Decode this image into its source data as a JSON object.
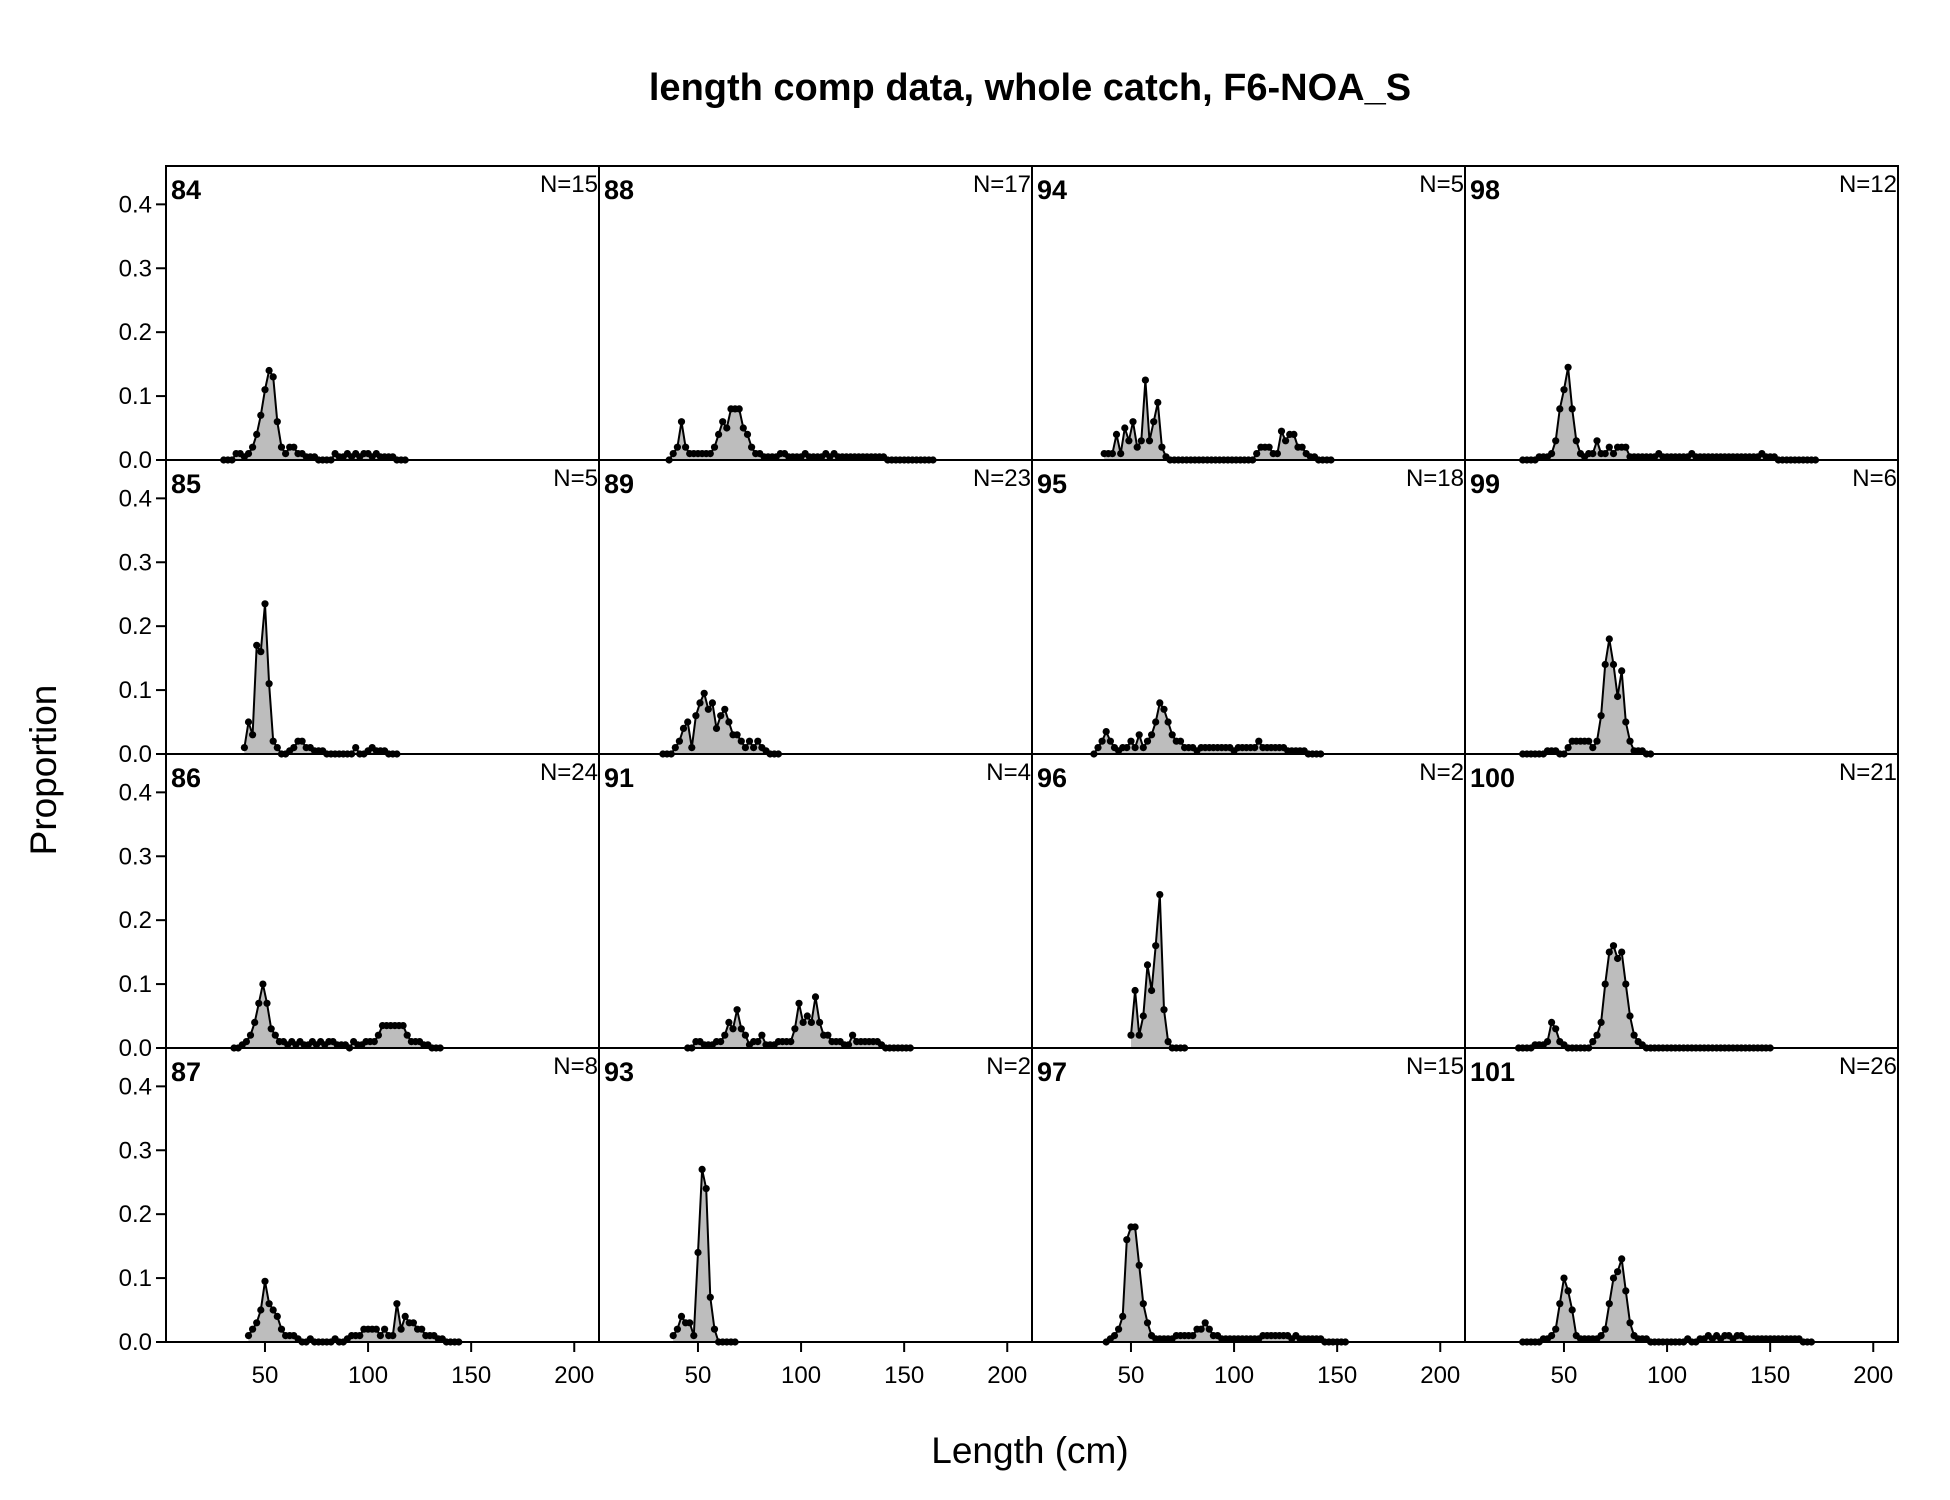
{
  "chart_data": {
    "type": "area",
    "title": "length comp data, whole catch, F6-NOA_S",
    "xlabel": "Length (cm)",
    "ylabel": "Proportion",
    "xlim": [
      2,
      212
    ],
    "ylim": [
      0,
      0.46
    ],
    "xticks": [
      "50",
      "100",
      "150",
      "200"
    ],
    "yticks": [
      "0.0",
      "0.1",
      "0.2",
      "0.3",
      "0.4"
    ],
    "grid": false,
    "layout": "4 columns x 4 rows, columns filled top-to-bottom",
    "fill_color": "#bdbdbd",
    "line_color": "#000000",
    "series": [
      {
        "name": "84",
        "n": "N=15",
        "x_start": 30,
        "step": 2,
        "values": [
          0,
          0,
          0,
          0.01,
          0.01,
          0.005,
          0.01,
          0.02,
          0.04,
          0.07,
          0.11,
          0.14,
          0.13,
          0.06,
          0.02,
          0.01,
          0.02,
          0.02,
          0.01,
          0.01,
          0.005,
          0.005,
          0.005,
          0,
          0,
          0,
          0,
          0.01,
          0.005,
          0.005,
          0.01,
          0.005,
          0.01,
          0.005,
          0.01,
          0.01,
          0.005,
          0.01,
          0.005,
          0.005,
          0.005,
          0.005,
          0,
          0,
          0
        ]
      },
      {
        "name": "85",
        "n": "N=5",
        "x_start": 40,
        "step": 2,
        "values": [
          0.01,
          0.05,
          0.03,
          0.17,
          0.16,
          0.235,
          0.11,
          0.02,
          0.01,
          0,
          0,
          0.005,
          0.01,
          0.02,
          0.02,
          0.01,
          0.01,
          0.005,
          0.005,
          0.005,
          0,
          0,
          0,
          0,
          0,
          0,
          0,
          0.01,
          0,
          0,
          0.005,
          0.01,
          0.005,
          0.005,
          0.005,
          0,
          0,
          0
        ]
      },
      {
        "name": "86",
        "n": "N=24",
        "x_start": 35,
        "step": 2,
        "values": [
          0,
          0,
          0.005,
          0.01,
          0.02,
          0.04,
          0.07,
          0.1,
          0.07,
          0.03,
          0.02,
          0.01,
          0.01,
          0.005,
          0.01,
          0.005,
          0.01,
          0.005,
          0.005,
          0.01,
          0.005,
          0.01,
          0.005,
          0.01,
          0.01,
          0.005,
          0.005,
          0.005,
          0,
          0.01,
          0.005,
          0.005,
          0.01,
          0.01,
          0.01,
          0.02,
          0.035,
          0.035,
          0.035,
          0.035,
          0.035,
          0.035,
          0.02,
          0.01,
          0.01,
          0.01,
          0.005,
          0.005,
          0,
          0,
          0
        ]
      },
      {
        "name": "87",
        "n": "N=8",
        "x_start": 42,
        "step": 2,
        "values": [
          0.01,
          0.02,
          0.03,
          0.05,
          0.095,
          0.06,
          0.05,
          0.04,
          0.02,
          0.01,
          0.01,
          0.01,
          0.005,
          0,
          0,
          0.005,
          0,
          0,
          0,
          0,
          0,
          0.005,
          0,
          0,
          0.005,
          0.01,
          0.01,
          0.01,
          0.02,
          0.02,
          0.02,
          0.02,
          0.01,
          0.02,
          0.01,
          0.01,
          0.06,
          0.02,
          0.04,
          0.03,
          0.03,
          0.02,
          0.02,
          0.01,
          0.01,
          0.01,
          0.005,
          0.005,
          0,
          0,
          0,
          0
        ]
      },
      {
        "name": "88",
        "n": "N=17",
        "x_start": 36,
        "step": 2,
        "values": [
          0,
          0.01,
          0.02,
          0.06,
          0.02,
          0.01,
          0.01,
          0.01,
          0.01,
          0.01,
          0.01,
          0.02,
          0.04,
          0.06,
          0.05,
          0.08,
          0.08,
          0.08,
          0.05,
          0.04,
          0.02,
          0.01,
          0.01,
          0.005,
          0.005,
          0.005,
          0.005,
          0.01,
          0.01,
          0.005,
          0.005,
          0.005,
          0.005,
          0.01,
          0.005,
          0.005,
          0.005,
          0.005,
          0.01,
          0.005,
          0.01,
          0.005,
          0.005,
          0.005,
          0.005,
          0.005,
          0.005,
          0.005,
          0.005,
          0.005,
          0.005,
          0.005,
          0.005,
          0,
          0,
          0,
          0,
          0,
          0,
          0,
          0,
          0,
          0,
          0,
          0
        ]
      },
      {
        "name": "89",
        "n": "N=23",
        "x_start": 33,
        "step": 2,
        "values": [
          0,
          0,
          0,
          0.01,
          0.02,
          0.04,
          0.05,
          0.01,
          0.06,
          0.08,
          0.095,
          0.07,
          0.08,
          0.04,
          0.06,
          0.07,
          0.05,
          0.03,
          0.03,
          0.02,
          0.01,
          0.02,
          0.01,
          0.02,
          0.01,
          0.005,
          0,
          0,
          0
        ]
      },
      {
        "name": "91",
        "n": "N=4",
        "x_start": 45,
        "step": 2,
        "values": [
          0,
          0,
          0.01,
          0.01,
          0.005,
          0.005,
          0.005,
          0.01,
          0.01,
          0.02,
          0.04,
          0.03,
          0.06,
          0.03,
          0.02,
          0.005,
          0.01,
          0.01,
          0.02,
          0.005,
          0.005,
          0.005,
          0.01,
          0.01,
          0.01,
          0.01,
          0.03,
          0.07,
          0.04,
          0.05,
          0.04,
          0.08,
          0.04,
          0.02,
          0.02,
          0.01,
          0.01,
          0.01,
          0.005,
          0.005,
          0.02,
          0.01,
          0.01,
          0.01,
          0.01,
          0.01,
          0.01,
          0.005,
          0,
          0,
          0,
          0,
          0,
          0,
          0
        ]
      },
      {
        "name": "93",
        "n": "N=2",
        "x_start": 38,
        "step": 2,
        "values": [
          0.01,
          0.02,
          0.04,
          0.03,
          0.03,
          0.01,
          0.14,
          0.27,
          0.24,
          0.07,
          0.02,
          0,
          0,
          0,
          0,
          0
        ]
      },
      {
        "name": "94",
        "n": "N=5",
        "x_start": 37,
        "step": 2,
        "values": [
          0.01,
          0.01,
          0.01,
          0.04,
          0.01,
          0.05,
          0.03,
          0.06,
          0.02,
          0.03,
          0.125,
          0.03,
          0.06,
          0.09,
          0.02,
          0.005,
          0,
          0,
          0,
          0,
          0,
          0,
          0,
          0,
          0,
          0,
          0,
          0,
          0,
          0,
          0,
          0,
          0,
          0,
          0,
          0,
          0,
          0.01,
          0.02,
          0.02,
          0.02,
          0.01,
          0.01,
          0.045,
          0.03,
          0.04,
          0.04,
          0.02,
          0.02,
          0.01,
          0.005,
          0.005,
          0,
          0,
          0,
          0
        ]
      },
      {
        "name": "95",
        "n": "N=18",
        "x_start": 32,
        "step": 2,
        "values": [
          0,
          0.01,
          0.02,
          0.035,
          0.02,
          0.01,
          0.005,
          0.01,
          0.01,
          0.02,
          0.01,
          0.03,
          0.01,
          0.02,
          0.03,
          0.05,
          0.08,
          0.07,
          0.05,
          0.03,
          0.02,
          0.02,
          0.01,
          0.01,
          0.01,
          0.005,
          0.01,
          0.01,
          0.01,
          0.01,
          0.01,
          0.01,
          0.01,
          0.01,
          0.005,
          0.01,
          0.01,
          0.01,
          0.01,
          0.01,
          0.02,
          0.01,
          0.01,
          0.01,
          0.01,
          0.01,
          0.01,
          0.005,
          0.005,
          0.005,
          0.005,
          0.005,
          0,
          0,
          0,
          0
        ]
      },
      {
        "name": "96",
        "n": "N=2",
        "x_start": 50,
        "step": 2,
        "values": [
          0.02,
          0.09,
          0.02,
          0.05,
          0.13,
          0.09,
          0.16,
          0.24,
          0.06,
          0.01,
          0,
          0,
          0,
          0
        ]
      },
      {
        "name": "97",
        "n": "N=15",
        "x_start": 38,
        "step": 2,
        "values": [
          0,
          0.005,
          0.01,
          0.02,
          0.04,
          0.16,
          0.18,
          0.18,
          0.12,
          0.06,
          0.03,
          0.01,
          0.005,
          0.005,
          0.005,
          0.005,
          0.005,
          0.01,
          0.01,
          0.01,
          0.01,
          0.01,
          0.02,
          0.02,
          0.03,
          0.02,
          0.01,
          0.01,
          0.005,
          0.005,
          0.005,
          0.005,
          0.005,
          0.005,
          0.005,
          0.005,
          0.005,
          0.005,
          0.01,
          0.01,
          0.01,
          0.01,
          0.01,
          0.01,
          0.01,
          0.005,
          0.01,
          0.005,
          0.005,
          0.005,
          0.005,
          0.005,
          0.005,
          0,
          0,
          0,
          0,
          0,
          0
        ]
      },
      {
        "name": "98",
        "n": "N=12",
        "x_start": 30,
        "step": 2,
        "values": [
          0,
          0,
          0,
          0,
          0.005,
          0.005,
          0.005,
          0.01,
          0.03,
          0.08,
          0.11,
          0.145,
          0.08,
          0.03,
          0.01,
          0.005,
          0.01,
          0.01,
          0.03,
          0.01,
          0.01,
          0.02,
          0.01,
          0.02,
          0.02,
          0.02,
          0.005,
          0.005,
          0.005,
          0.005,
          0.005,
          0.005,
          0.005,
          0.01,
          0.005,
          0.005,
          0.005,
          0.005,
          0.005,
          0.005,
          0.005,
          0.01,
          0.005,
          0.005,
          0.005,
          0.005,
          0.005,
          0.005,
          0.005,
          0.005,
          0.005,
          0.005,
          0.005,
          0.005,
          0.005,
          0.005,
          0.005,
          0.005,
          0.01,
          0.005,
          0.005,
          0.005,
          0,
          0,
          0,
          0,
          0,
          0,
          0,
          0,
          0,
          0
        ]
      },
      {
        "name": "99",
        "n": "N=6",
        "x_start": 30,
        "step": 2,
        "values": [
          0,
          0,
          0,
          0,
          0,
          0,
          0.005,
          0.005,
          0.005,
          0,
          0,
          0.01,
          0.02,
          0.02,
          0.02,
          0.02,
          0.02,
          0.01,
          0.02,
          0.06,
          0.14,
          0.18,
          0.14,
          0.09,
          0.13,
          0.05,
          0.02,
          0.005,
          0.005,
          0.005,
          0,
          0
        ]
      },
      {
        "name": "100",
        "n": "N=21",
        "x_start": 28,
        "step": 2,
        "values": [
          0,
          0,
          0,
          0,
          0.005,
          0.005,
          0.005,
          0.01,
          0.04,
          0.03,
          0.01,
          0.005,
          0,
          0,
          0,
          0,
          0,
          0,
          0.01,
          0.02,
          0.04,
          0.1,
          0.15,
          0.16,
          0.14,
          0.15,
          0.1,
          0.05,
          0.02,
          0.01,
          0.005,
          0,
          0,
          0,
          0,
          0,
          0,
          0,
          0,
          0,
          0,
          0,
          0,
          0,
          0,
          0,
          0,
          0,
          0,
          0,
          0,
          0,
          0,
          0,
          0,
          0,
          0,
          0,
          0,
          0,
          0,
          0
        ]
      },
      {
        "name": "101",
        "n": "N=26",
        "x_start": 30,
        "step": 2,
        "values": [
          0,
          0,
          0,
          0,
          0,
          0.005,
          0.005,
          0.01,
          0.02,
          0.06,
          0.1,
          0.08,
          0.05,
          0.01,
          0.005,
          0.005,
          0.005,
          0.005,
          0.005,
          0.01,
          0.02,
          0.06,
          0.1,
          0.11,
          0.13,
          0.08,
          0.03,
          0.01,
          0.005,
          0.005,
          0.005,
          0,
          0,
          0,
          0,
          0,
          0,
          0,
          0,
          0,
          0.005,
          0,
          0,
          0.005,
          0.005,
          0.01,
          0.005,
          0.01,
          0.005,
          0.01,
          0.01,
          0.005,
          0.01,
          0.01,
          0.005,
          0.005,
          0.005,
          0.005,
          0.005,
          0.005,
          0.005,
          0.005,
          0.005,
          0.005,
          0.005,
          0.005,
          0.005,
          0.005,
          0,
          0,
          0
        ]
      }
    ]
  }
}
